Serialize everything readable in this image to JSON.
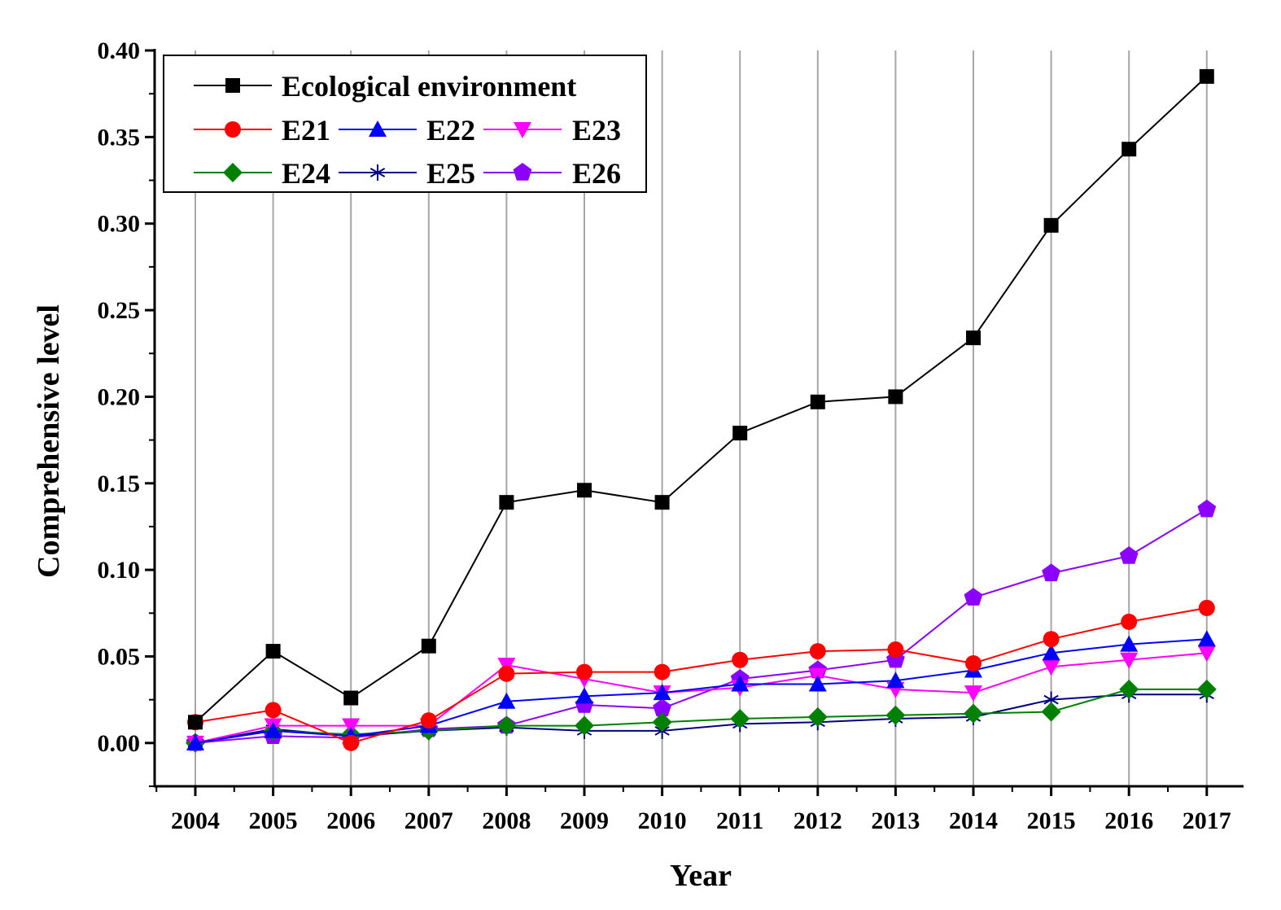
{
  "chart_data": {
    "type": "line",
    "xlabel": "Year",
    "ylabel": "Comprehensive level",
    "ylim": [
      -0.025,
      0.4
    ],
    "yticks": [
      "0.00",
      "0.05",
      "0.10",
      "0.15",
      "0.20",
      "0.25",
      "0.30",
      "0.35",
      "0.40"
    ],
    "grid": "vertical",
    "legend_position": "top-left",
    "x": [
      "2004",
      "2005",
      "2006",
      "2007",
      "2008",
      "2009",
      "2010",
      "2011",
      "2012",
      "2013",
      "2014",
      "2015",
      "2016",
      "2017"
    ],
    "series": [
      {
        "name": "Ecological environment",
        "color": "#000000",
        "marker": "square",
        "values": [
          0.012,
          0.053,
          0.026,
          0.056,
          0.139,
          0.146,
          0.139,
          0.179,
          0.197,
          0.2,
          0.234,
          0.299,
          0.343,
          0.385
        ]
      },
      {
        "name": "E21",
        "color": "#ff0000",
        "marker": "circle",
        "values": [
          0.012,
          0.019,
          0.0,
          0.013,
          0.04,
          0.041,
          0.041,
          0.048,
          0.053,
          0.054,
          0.046,
          0.06,
          0.07,
          0.078
        ]
      },
      {
        "name": "E22",
        "color": "#0000ff",
        "marker": "triangle-up",
        "values": [
          0.0,
          0.007,
          0.004,
          0.01,
          0.024,
          0.027,
          0.029,
          0.034,
          0.034,
          0.036,
          0.042,
          0.052,
          0.057,
          0.06
        ]
      },
      {
        "name": "E23",
        "color": "#ff00ff",
        "marker": "triangle-down",
        "values": [
          0.0,
          0.01,
          0.01,
          0.01,
          0.045,
          0.037,
          0.029,
          0.032,
          0.039,
          0.031,
          0.029,
          0.044,
          0.048,
          0.052
        ]
      },
      {
        "name": "E24",
        "color": "#008000",
        "marker": "diamond",
        "values": [
          0.0,
          0.007,
          0.005,
          0.007,
          0.01,
          0.01,
          0.012,
          0.014,
          0.015,
          0.016,
          0.017,
          0.018,
          0.031,
          0.031
        ]
      },
      {
        "name": "E25",
        "color": "#000080",
        "marker": "star",
        "values": [
          0.0,
          0.008,
          0.004,
          0.007,
          0.009,
          0.007,
          0.007,
          0.011,
          0.012,
          0.014,
          0.015,
          0.025,
          0.028,
          0.028
        ]
      },
      {
        "name": "E26",
        "color": "#8b00ff",
        "marker": "pentagon",
        "values": [
          0.0,
          0.004,
          0.003,
          0.008,
          0.01,
          0.022,
          0.02,
          0.037,
          0.042,
          0.048,
          0.084,
          0.098,
          0.108,
          0.135
        ]
      }
    ]
  }
}
